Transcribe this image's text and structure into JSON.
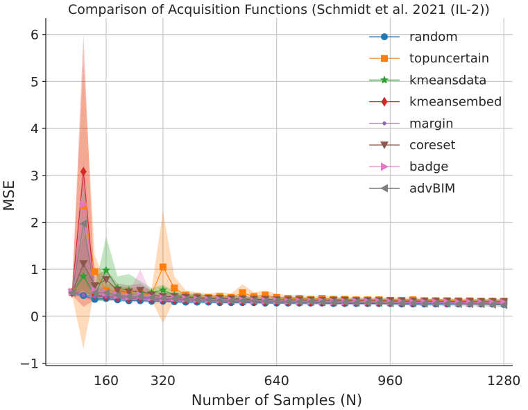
{
  "chart_data": {
    "type": "line",
    "title": "Comparison of Acquisition Functions (Schmidt et al. 2021 (IL-2))",
    "xlabel": "Number of Samples (N)",
    "ylabel": "MSE",
    "xlim": [
      -10,
      1305
    ],
    "ylim": [
      -1.05,
      6.35
    ],
    "xticks": [
      160,
      320,
      640,
      960,
      1280
    ],
    "xtick_labels": [
      "160",
      "320",
      "640",
      "960",
      "1280"
    ],
    "yticks": [
      -1,
      0,
      1,
      2,
      3,
      4,
      5,
      6
    ],
    "ytick_labels": [
      "−1",
      "0",
      "1",
      "2",
      "3",
      "4",
      "5",
      "6"
    ],
    "grid": true,
    "legend_position": "upper-right",
    "x": [
      64,
      96,
      128,
      160,
      192,
      224,
      256,
      288,
      320,
      352,
      384,
      416,
      448,
      480,
      512,
      544,
      576,
      608,
      640,
      672,
      704,
      736,
      768,
      800,
      832,
      864,
      896,
      928,
      960,
      992,
      1024,
      1056,
      1088,
      1120,
      1152,
      1184,
      1216,
      1248,
      1280
    ],
    "series": [
      {
        "name": "random",
        "color": "#1f77b4",
        "marker": "circle",
        "y": [
          0.5,
          0.44,
          0.36,
          0.38,
          0.35,
          0.33,
          0.33,
          0.32,
          0.32,
          0.31,
          0.3,
          0.3,
          0.3,
          0.29,
          0.29,
          0.29,
          0.29,
          0.28,
          0.28,
          0.28,
          0.28,
          0.28,
          0.28,
          0.27,
          0.27,
          0.27,
          0.27,
          0.27,
          0.27,
          0.26,
          0.26,
          0.26,
          0.26,
          0.26,
          0.26,
          0.26,
          0.26,
          0.26,
          0.25
        ],
        "lower": [
          0.46,
          0.4,
          0.32,
          0.34,
          0.31,
          0.3,
          0.3,
          0.29,
          0.29,
          0.28,
          0.27,
          0.27,
          0.27,
          0.27,
          0.26,
          0.26,
          0.26,
          0.26,
          0.26,
          0.26,
          0.25,
          0.25,
          0.25,
          0.25,
          0.25,
          0.25,
          0.25,
          0.25,
          0.25,
          0.24,
          0.24,
          0.24,
          0.24,
          0.24,
          0.24,
          0.24,
          0.24,
          0.24,
          0.23
        ],
        "upper": [
          0.54,
          0.48,
          0.4,
          0.42,
          0.39,
          0.36,
          0.36,
          0.35,
          0.35,
          0.34,
          0.33,
          0.33,
          0.33,
          0.31,
          0.32,
          0.32,
          0.32,
          0.3,
          0.3,
          0.3,
          0.31,
          0.31,
          0.31,
          0.29,
          0.29,
          0.29,
          0.29,
          0.29,
          0.29,
          0.28,
          0.28,
          0.28,
          0.28,
          0.28,
          0.28,
          0.28,
          0.28,
          0.28,
          0.27
        ]
      },
      {
        "name": "topuncertain",
        "color": "#ff7f0e",
        "marker": "square",
        "y": [
          0.52,
          2.35,
          0.95,
          0.55,
          0.52,
          0.5,
          0.48,
          0.46,
          1.05,
          0.6,
          0.45,
          0.42,
          0.4,
          0.42,
          0.4,
          0.5,
          0.42,
          0.45,
          0.4,
          0.38,
          0.38,
          0.36,
          0.38,
          0.36,
          0.36,
          0.35,
          0.35,
          0.35,
          0.34,
          0.34,
          0.35,
          0.33,
          0.33,
          0.33,
          0.33,
          0.33,
          0.32,
          0.32,
          0.32
        ],
        "lower": [
          0.45,
          -0.7,
          0.6,
          0.4,
          0.4,
          0.38,
          0.36,
          0.34,
          -0.15,
          0.35,
          0.35,
          0.33,
          0.31,
          0.33,
          0.31,
          0.38,
          0.33,
          0.35,
          0.32,
          0.31,
          0.31,
          0.3,
          0.31,
          0.3,
          0.3,
          0.29,
          0.29,
          0.29,
          0.28,
          0.28,
          0.29,
          0.28,
          0.28,
          0.28,
          0.28,
          0.28,
          0.27,
          0.27,
          0.27
        ],
        "upper": [
          0.6,
          5.4,
          1.3,
          0.7,
          0.64,
          0.62,
          0.6,
          0.58,
          2.25,
          0.85,
          0.55,
          0.51,
          0.49,
          0.51,
          0.49,
          0.68,
          0.51,
          0.55,
          0.48,
          0.45,
          0.45,
          0.42,
          0.45,
          0.42,
          0.42,
          0.41,
          0.41,
          0.41,
          0.4,
          0.4,
          0.41,
          0.38,
          0.38,
          0.38,
          0.38,
          0.38,
          0.37,
          0.37,
          0.37
        ]
      },
      {
        "name": "kmeansdata",
        "color": "#2ca02c",
        "marker": "star",
        "y": [
          0.5,
          0.85,
          0.45,
          0.98,
          0.6,
          0.55,
          0.5,
          0.5,
          0.56,
          0.45,
          0.42,
          0.4,
          0.38,
          0.38,
          0.37,
          0.36,
          0.36,
          0.35,
          0.35,
          0.35,
          0.35,
          0.34,
          0.34,
          0.34,
          0.33,
          0.33,
          0.33,
          0.33,
          0.32,
          0.32,
          0.32,
          0.32,
          0.32,
          0.31,
          0.31,
          0.31,
          0.31,
          0.31,
          0.31
        ],
        "lower": [
          0.45,
          0.55,
          0.35,
          0.3,
          0.4,
          0.35,
          0.35,
          0.4,
          0.45,
          0.36,
          0.34,
          0.32,
          0.31,
          0.31,
          0.3,
          0.3,
          0.3,
          0.29,
          0.29,
          0.29,
          0.29,
          0.29,
          0.29,
          0.29,
          0.28,
          0.28,
          0.28,
          0.28,
          0.27,
          0.27,
          0.27,
          0.27,
          0.27,
          0.26,
          0.26,
          0.26,
          0.26,
          0.26,
          0.26
        ],
        "upper": [
          0.55,
          1.15,
          0.6,
          1.7,
          0.85,
          0.9,
          0.75,
          0.6,
          0.67,
          0.54,
          0.5,
          0.48,
          0.45,
          0.45,
          0.44,
          0.42,
          0.42,
          0.41,
          0.41,
          0.41,
          0.41,
          0.39,
          0.39,
          0.39,
          0.38,
          0.38,
          0.38,
          0.38,
          0.37,
          0.37,
          0.37,
          0.37,
          0.37,
          0.36,
          0.36,
          0.36,
          0.36,
          0.36,
          0.36
        ]
      },
      {
        "name": "kmeansembed",
        "color": "#d62728",
        "marker": "diamond",
        "y": [
          0.5,
          3.08,
          0.45,
          0.42,
          0.4,
          0.38,
          0.38,
          0.37,
          0.36,
          0.35,
          0.35,
          0.34,
          0.34,
          0.33,
          0.33,
          0.33,
          0.32,
          0.32,
          0.32,
          0.32,
          0.31,
          0.31,
          0.31,
          0.31,
          0.31,
          0.31,
          0.3,
          0.3,
          0.3,
          0.3,
          0.3,
          0.3,
          0.3,
          0.29,
          0.29,
          0.29,
          0.29,
          0.29,
          0.29
        ],
        "lower": [
          0.45,
          0.2,
          0.35,
          0.35,
          0.34,
          0.33,
          0.33,
          0.32,
          0.31,
          0.3,
          0.3,
          0.3,
          0.3,
          0.29,
          0.29,
          0.29,
          0.28,
          0.28,
          0.28,
          0.28,
          0.27,
          0.27,
          0.27,
          0.27,
          0.27,
          0.27,
          0.26,
          0.26,
          0.26,
          0.26,
          0.26,
          0.26,
          0.26,
          0.25,
          0.25,
          0.25,
          0.25,
          0.25,
          0.25
        ],
        "upper": [
          0.55,
          6.0,
          0.55,
          0.49,
          0.46,
          0.43,
          0.43,
          0.42,
          0.41,
          0.4,
          0.4,
          0.38,
          0.38,
          0.37,
          0.37,
          0.37,
          0.36,
          0.36,
          0.36,
          0.36,
          0.35,
          0.35,
          0.35,
          0.35,
          0.35,
          0.35,
          0.34,
          0.34,
          0.34,
          0.34,
          0.34,
          0.34,
          0.34,
          0.33,
          0.33,
          0.33,
          0.33,
          0.33,
          0.33
        ]
      },
      {
        "name": "margin",
        "color": "#9467bd",
        "marker": "point",
        "y": [
          0.5,
          0.45,
          0.42,
          0.42,
          0.4,
          0.38,
          0.38,
          0.37,
          0.36,
          0.35,
          0.35,
          0.34,
          0.34,
          0.33,
          0.33,
          0.33,
          0.32,
          0.32,
          0.32,
          0.31,
          0.31,
          0.31,
          0.31,
          0.3,
          0.3,
          0.3,
          0.3,
          0.3,
          0.3,
          0.29,
          0.29,
          0.29,
          0.29,
          0.29,
          0.29,
          0.28,
          0.28,
          0.28,
          0.28
        ],
        "lower": [
          0.45,
          0.4,
          0.37,
          0.36,
          0.35,
          0.33,
          0.33,
          0.32,
          0.32,
          0.31,
          0.31,
          0.3,
          0.3,
          0.29,
          0.29,
          0.29,
          0.28,
          0.28,
          0.28,
          0.27,
          0.27,
          0.27,
          0.27,
          0.26,
          0.26,
          0.26,
          0.26,
          0.26,
          0.26,
          0.25,
          0.25,
          0.25,
          0.25,
          0.25,
          0.25,
          0.24,
          0.24,
          0.24,
          0.24
        ],
        "upper": [
          0.55,
          0.5,
          0.47,
          0.48,
          0.45,
          0.43,
          0.43,
          0.42,
          0.4,
          0.39,
          0.39,
          0.38,
          0.38,
          0.37,
          0.37,
          0.37,
          0.36,
          0.36,
          0.36,
          0.35,
          0.35,
          0.35,
          0.35,
          0.34,
          0.34,
          0.34,
          0.34,
          0.34,
          0.34,
          0.33,
          0.33,
          0.33,
          0.33,
          0.33,
          0.33,
          0.32,
          0.32,
          0.32,
          0.32
        ]
      },
      {
        "name": "coreset",
        "color": "#8c564b",
        "marker": "triangle-down",
        "y": [
          0.5,
          1.12,
          0.65,
          0.78,
          0.55,
          0.52,
          0.55,
          0.45,
          0.42,
          0.42,
          0.4,
          0.39,
          0.38,
          0.38,
          0.37,
          0.37,
          0.36,
          0.36,
          0.35,
          0.35,
          0.35,
          0.34,
          0.34,
          0.34,
          0.34,
          0.33,
          0.33,
          0.33,
          0.33,
          0.32,
          0.32,
          0.32,
          0.32,
          0.32,
          0.31,
          0.31,
          0.31,
          0.31,
          0.31
        ],
        "lower": [
          0.45,
          0.5,
          0.45,
          0.55,
          0.4,
          0.38,
          0.4,
          0.36,
          0.34,
          0.34,
          0.33,
          0.32,
          0.31,
          0.31,
          0.31,
          0.31,
          0.3,
          0.3,
          0.29,
          0.29,
          0.29,
          0.29,
          0.29,
          0.29,
          0.29,
          0.28,
          0.28,
          0.28,
          0.28,
          0.27,
          0.27,
          0.27,
          0.27,
          0.27,
          0.26,
          0.26,
          0.26,
          0.26,
          0.26
        ],
        "upper": [
          0.55,
          1.8,
          0.85,
          1.0,
          0.7,
          0.66,
          0.7,
          0.54,
          0.5,
          0.5,
          0.47,
          0.46,
          0.45,
          0.45,
          0.43,
          0.43,
          0.42,
          0.42,
          0.41,
          0.41,
          0.41,
          0.39,
          0.39,
          0.39,
          0.39,
          0.38,
          0.38,
          0.38,
          0.38,
          0.37,
          0.37,
          0.37,
          0.37,
          0.37,
          0.36,
          0.36,
          0.36,
          0.36,
          0.36
        ]
      },
      {
        "name": "badge",
        "color": "#e377c2",
        "marker": "triangle-right",
        "y": [
          0.52,
          2.38,
          0.55,
          0.5,
          0.45,
          0.42,
          0.45,
          0.4,
          0.38,
          0.38,
          0.37,
          0.36,
          0.35,
          0.35,
          0.34,
          0.34,
          0.33,
          0.33,
          0.33,
          0.32,
          0.32,
          0.32,
          0.32,
          0.31,
          0.31,
          0.31,
          0.31,
          0.31,
          0.3,
          0.3,
          0.3,
          0.3,
          0.3,
          0.3,
          0.29,
          0.29,
          0.29,
          0.29,
          0.29
        ],
        "lower": [
          0.45,
          1.0,
          0.4,
          0.4,
          0.35,
          0.32,
          0.33,
          0.32,
          0.31,
          0.31,
          0.3,
          0.3,
          0.29,
          0.29,
          0.28,
          0.28,
          0.28,
          0.28,
          0.28,
          0.27,
          0.27,
          0.27,
          0.27,
          0.26,
          0.26,
          0.26,
          0.26,
          0.26,
          0.26,
          0.26,
          0.26,
          0.26,
          0.26,
          0.26,
          0.25,
          0.25,
          0.25,
          0.25,
          0.25
        ],
        "upper": [
          0.6,
          3.4,
          0.7,
          0.6,
          0.55,
          0.52,
          1.0,
          0.48,
          0.45,
          0.45,
          0.44,
          0.42,
          0.41,
          0.41,
          0.4,
          0.4,
          0.38,
          0.38,
          0.38,
          0.37,
          0.37,
          0.37,
          0.37,
          0.36,
          0.36,
          0.36,
          0.36,
          0.36,
          0.34,
          0.34,
          0.34,
          0.34,
          0.34,
          0.34,
          0.33,
          0.33,
          0.33,
          0.33,
          0.33
        ]
      },
      {
        "name": "advBIM",
        "color": "#7f7f7f",
        "marker": "triangle-left",
        "y": [
          0.5,
          1.97,
          0.5,
          0.5,
          0.45,
          0.42,
          0.42,
          0.4,
          0.38,
          0.38,
          0.36,
          0.35,
          0.35,
          0.34,
          0.33,
          0.33,
          0.33,
          0.32,
          0.32,
          0.31,
          0.31,
          0.31,
          0.3,
          0.3,
          0.3,
          0.29,
          0.29,
          0.29,
          0.28,
          0.28,
          0.28,
          0.27,
          0.27,
          0.27,
          0.26,
          0.26,
          0.26,
          0.25,
          0.24
        ],
        "lower": [
          0.45,
          0.8,
          0.4,
          0.4,
          0.37,
          0.35,
          0.35,
          0.33,
          0.32,
          0.32,
          0.3,
          0.3,
          0.3,
          0.29,
          0.28,
          0.28,
          0.28,
          0.27,
          0.27,
          0.26,
          0.26,
          0.26,
          0.25,
          0.25,
          0.25,
          0.24,
          0.24,
          0.24,
          0.23,
          0.23,
          0.23,
          0.22,
          0.22,
          0.22,
          0.21,
          0.21,
          0.21,
          0.2,
          0.19
        ],
        "upper": [
          0.55,
          3.1,
          0.6,
          0.6,
          0.53,
          0.49,
          0.49,
          0.47,
          0.44,
          0.44,
          0.42,
          0.4,
          0.4,
          0.39,
          0.38,
          0.38,
          0.38,
          0.37,
          0.37,
          0.36,
          0.36,
          0.36,
          0.35,
          0.35,
          0.35,
          0.34,
          0.34,
          0.34,
          0.33,
          0.33,
          0.33,
          0.32,
          0.32,
          0.32,
          0.31,
          0.31,
          0.31,
          0.3,
          0.29
        ]
      }
    ]
  }
}
